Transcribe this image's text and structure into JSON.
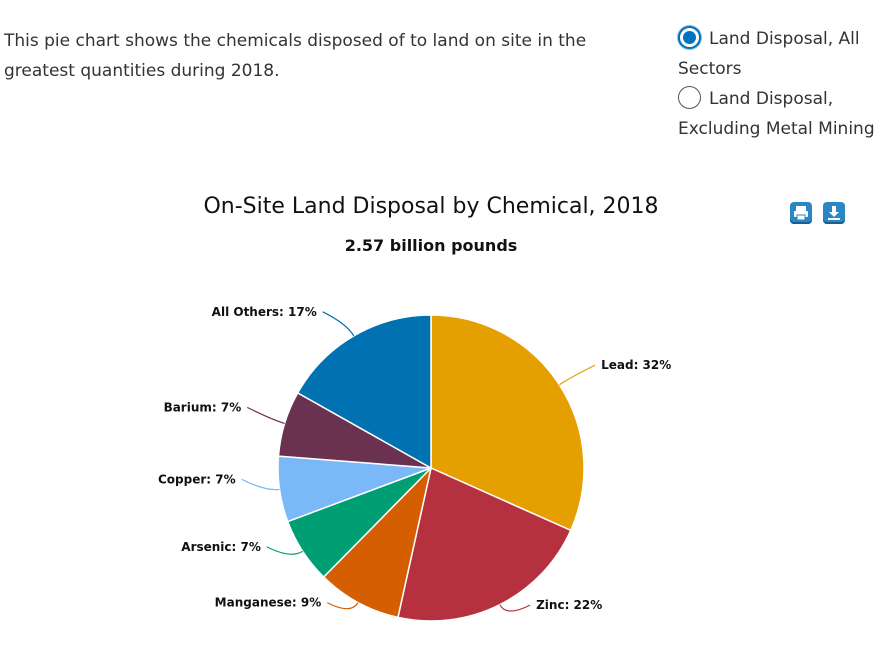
{
  "intro": {
    "text": "This pie chart shows the chemicals disposed of to land on site in the greatest quantities during 2018."
  },
  "radio_options": [
    {
      "label": "Land Disposal, All Sectors",
      "checked": true
    },
    {
      "label": "Land Disposal, Excluding Metal Mining",
      "checked": false
    }
  ],
  "toolbar": {
    "print_icon": "print-icon",
    "download_icon": "download-icon",
    "button_color": "#2b86c5"
  },
  "chart_data": {
    "type": "pie",
    "title": "On-Site Land Disposal by Chemical, 2018",
    "subtitle": "2.57 billion pounds",
    "slices": [
      {
        "label": "Lead",
        "value": 32,
        "color": "#e69f00"
      },
      {
        "label": "Zinc",
        "value": 22,
        "color": "#b53140"
      },
      {
        "label": "Manganese",
        "value": 9,
        "color": "#d55e00"
      },
      {
        "label": "Arsenic",
        "value": 7,
        "color": "#009e73"
      },
      {
        "label": "Copper",
        "value": 7,
        "color": "#7bb8f7"
      },
      {
        "label": "Barium",
        "value": 7,
        "color": "#6a3150"
      },
      {
        "label": "All Others",
        "value": 17,
        "color": "#0072b2"
      }
    ]
  }
}
